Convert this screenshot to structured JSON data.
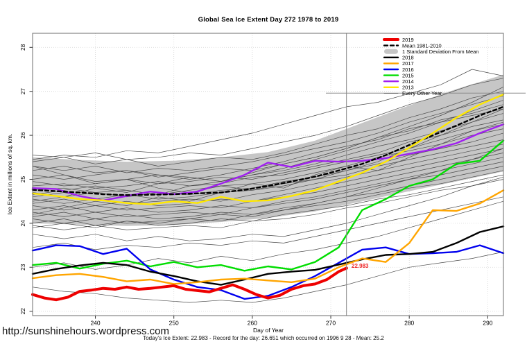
{
  "page": {
    "title": "Global Sea Ice Extent Day 272 1978 to 2019"
  },
  "axes": {
    "x_label": "Day of Year",
    "y_label": "Ice Extent in millions of sq. km."
  },
  "footer": {
    "url": "http://sunshinehours.wordpress.com",
    "caption": "Today's Ice Extent: 22.983  - Record for the day: 26.651 which occurred on 1996 9 28  - Mean: 25.2"
  },
  "annotation": {
    "text": "22.983"
  },
  "chart_data": {
    "type": "line",
    "title": "Global Sea Ice Extent Day 272 1978 to 2019",
    "xlabel": "Day of Year",
    "ylabel": "Ice Extent in millions of sq. km.",
    "xlim": [
      232,
      292
    ],
    "ylim": [
      21.9,
      28.32
    ],
    "x_ticks": [
      240,
      250,
      260,
      270,
      280,
      290
    ],
    "y_ticks": [
      22,
      23,
      24,
      25,
      26,
      27,
      28
    ],
    "grid": true,
    "grid_color": "#d4d4d4",
    "border_color": "#6e6e6e",
    "legend_position": "top-right",
    "reference_lines": {
      "vertical_day": 272,
      "horizontal_value": 26.96,
      "color": "#8a8a8a"
    },
    "annotation": {
      "text": "22.983",
      "day": 272.7,
      "value": 22.99,
      "color": "#ee2222"
    },
    "band": {
      "label": "1 Standard Deviation From Mean",
      "color": "#c6c6c6",
      "days": [
        232,
        238,
        244,
        250,
        256,
        262,
        268,
        274,
        280,
        286,
        292
      ],
      "top": [
        25.5,
        25.44,
        25.4,
        25.42,
        25.5,
        25.62,
        25.88,
        26.28,
        26.68,
        27.05,
        27.38
      ],
      "bottom": [
        24.0,
        23.97,
        23.94,
        23.96,
        24.03,
        24.12,
        24.27,
        24.5,
        24.73,
        24.95,
        25.18
      ]
    },
    "series_days": [
      232,
      235,
      238,
      241,
      244,
      247,
      250,
      253,
      256,
      259,
      262,
      265,
      268,
      271,
      274,
      277,
      280,
      283,
      286,
      289,
      292
    ],
    "series": [
      {
        "name": "2014",
        "color": "#a020f0",
        "width": 2.4,
        "values": [
          24.8,
          24.78,
          24.62,
          24.52,
          24.62,
          24.72,
          24.66,
          24.72,
          24.9,
          25.1,
          25.38,
          25.28,
          25.42,
          25.4,
          25.42,
          25.48,
          25.58,
          25.68,
          25.82,
          26.05,
          26.25
        ]
      },
      {
        "name": "Mean 1981-2010",
        "color": "#000000",
        "width": 2.4,
        "dash": "5 4",
        "values": [
          24.76,
          24.73,
          24.7,
          24.66,
          24.64,
          24.65,
          24.66,
          24.68,
          24.7,
          24.76,
          24.85,
          24.95,
          25.06,
          25.2,
          25.35,
          25.55,
          25.78,
          26.0,
          26.22,
          26.45,
          26.65
        ]
      },
      {
        "name": "2013",
        "color": "#ffe800",
        "width": 2.4,
        "values": [
          24.68,
          24.62,
          24.55,
          24.52,
          24.46,
          24.43,
          24.5,
          24.46,
          24.6,
          24.5,
          24.52,
          24.62,
          24.75,
          24.95,
          25.15,
          25.4,
          25.72,
          26.05,
          26.4,
          26.7,
          26.93
        ]
      },
      {
        "name": "2015",
        "color": "#00dd00",
        "width": 2.4,
        "values": [
          23.05,
          23.1,
          22.97,
          23.08,
          23.15,
          23.02,
          23.12,
          23.0,
          23.05,
          22.92,
          23.02,
          22.95,
          23.12,
          23.45,
          24.3,
          24.55,
          24.85,
          25.0,
          25.35,
          25.42,
          25.88
        ]
      },
      {
        "name": "2016",
        "color": "#0000ee",
        "width": 2.4,
        "values": [
          23.38,
          23.5,
          23.48,
          23.3,
          23.42,
          22.95,
          22.72,
          22.55,
          22.48,
          22.28,
          22.35,
          22.55,
          22.8,
          23.1,
          23.4,
          23.45,
          23.3,
          23.32,
          23.35,
          23.5,
          23.32
        ]
      },
      {
        "name": "2018",
        "color": "#000000",
        "width": 2.4,
        "values": [
          22.85,
          22.96,
          23.04,
          23.1,
          23.05,
          22.9,
          22.8,
          22.68,
          22.6,
          22.72,
          22.85,
          22.9,
          22.94,
          23.06,
          23.18,
          23.28,
          23.3,
          23.35,
          23.55,
          23.8,
          23.93
        ]
      },
      {
        "name": "2017",
        "color": "#ffa500",
        "width": 2.4,
        "values": [
          22.75,
          22.82,
          22.85,
          22.78,
          22.68,
          22.72,
          22.62,
          22.66,
          22.72,
          22.74,
          22.7,
          22.66,
          22.74,
          23.0,
          23.2,
          23.12,
          23.55,
          24.3,
          24.28,
          24.45,
          24.75
        ]
      }
    ],
    "series_2019": {
      "name": "2019",
      "color": "#ee0000",
      "width": 4,
      "end_dot": true,
      "days": [
        232,
        233.5,
        235,
        236.5,
        238,
        239.5,
        241,
        242.5,
        244,
        245.5,
        247,
        248.5,
        250,
        251.5,
        253,
        254.5,
        256,
        257.5,
        259,
        260.5,
        262,
        263.5,
        265,
        266.5,
        268,
        269.5,
        271,
        272
      ],
      "values": [
        22.38,
        22.3,
        22.26,
        22.32,
        22.45,
        22.48,
        22.52,
        22.5,
        22.55,
        22.5,
        22.52,
        22.55,
        22.58,
        22.5,
        22.47,
        22.44,
        22.52,
        22.6,
        22.5,
        22.38,
        22.3,
        22.36,
        22.5,
        22.58,
        22.62,
        22.72,
        22.9,
        22.98
      ]
    },
    "other_years": {
      "label": "Every Other Year",
      "color": "#4a4a4a",
      "width": 0.7,
      "days": [
        232,
        236,
        240,
        244,
        248,
        252,
        256,
        260,
        264,
        268,
        272,
        276,
        280,
        284,
        288,
        292
      ],
      "lines": [
        [
          25.55,
          25.5,
          25.6,
          25.45,
          25.5,
          25.6,
          25.55,
          25.7,
          25.85,
          26.0,
          26.2,
          26.45,
          26.7,
          26.9,
          27.15,
          27.3
        ],
        [
          25.4,
          25.5,
          25.35,
          25.45,
          25.3,
          25.4,
          25.5,
          25.45,
          25.6,
          25.8,
          26.0,
          26.15,
          26.4,
          26.6,
          26.85,
          27.0
        ],
        [
          25.3,
          25.2,
          25.3,
          25.15,
          25.25,
          25.2,
          25.3,
          25.4,
          25.55,
          25.7,
          25.85,
          26.05,
          26.3,
          26.5,
          26.7,
          26.9
        ],
        [
          25.2,
          25.3,
          25.15,
          25.2,
          25.05,
          25.15,
          25.25,
          25.2,
          25.35,
          25.5,
          25.7,
          25.95,
          26.1,
          26.35,
          26.5,
          26.7
        ],
        [
          25.1,
          25.0,
          25.1,
          25.2,
          25.1,
          25.0,
          25.1,
          25.25,
          25.4,
          25.6,
          25.75,
          25.9,
          26.15,
          26.3,
          26.45,
          26.6
        ],
        [
          25.0,
          25.1,
          24.95,
          25.0,
          25.1,
          25.05,
          24.95,
          25.1,
          25.2,
          25.35,
          25.55,
          25.75,
          25.9,
          26.1,
          26.3,
          26.5
        ],
        [
          24.95,
          24.85,
          24.9,
          25.0,
          24.9,
          24.95,
          25.05,
          25.0,
          25.15,
          25.3,
          25.45,
          25.6,
          25.85,
          26.0,
          26.2,
          26.35
        ],
        [
          24.85,
          24.9,
          24.8,
          24.85,
          24.95,
          24.85,
          24.9,
          25.05,
          25.1,
          25.25,
          25.4,
          25.55,
          25.7,
          25.9,
          26.1,
          26.25
        ],
        [
          24.75,
          24.8,
          24.7,
          24.75,
          24.65,
          24.75,
          24.85,
          24.9,
          25.0,
          25.15,
          25.3,
          25.5,
          25.65,
          25.8,
          26.0,
          26.15
        ],
        [
          24.7,
          24.6,
          24.7,
          24.6,
          24.7,
          24.65,
          24.75,
          24.8,
          24.95,
          25.05,
          25.2,
          25.35,
          25.55,
          25.7,
          25.85,
          26.05
        ],
        [
          24.6,
          24.7,
          24.55,
          24.65,
          24.55,
          24.6,
          24.7,
          24.75,
          24.85,
          25.0,
          25.1,
          25.3,
          25.45,
          25.6,
          25.75,
          25.9
        ],
        [
          24.55,
          24.45,
          24.55,
          24.45,
          24.5,
          24.55,
          24.5,
          24.65,
          24.75,
          24.9,
          25.05,
          25.2,
          25.35,
          25.5,
          25.65,
          25.8
        ],
        [
          24.45,
          24.55,
          24.4,
          24.5,
          24.4,
          24.45,
          24.55,
          24.5,
          24.65,
          24.8,
          24.95,
          25.1,
          25.25,
          25.4,
          25.55,
          25.7
        ],
        [
          24.4,
          24.3,
          24.4,
          24.3,
          24.35,
          24.4,
          24.35,
          24.5,
          24.6,
          24.7,
          24.85,
          25.0,
          25.15,
          25.3,
          25.45,
          25.6
        ],
        [
          24.3,
          24.4,
          24.25,
          24.35,
          24.25,
          24.3,
          24.4,
          24.35,
          24.5,
          24.6,
          24.75,
          24.9,
          25.05,
          25.2,
          25.35,
          25.5
        ],
        [
          24.25,
          24.15,
          24.25,
          24.15,
          24.2,
          24.25,
          24.2,
          24.35,
          24.45,
          24.55,
          24.7,
          24.85,
          25.0,
          25.1,
          25.25,
          25.4
        ],
        [
          24.15,
          24.25,
          24.1,
          24.2,
          24.1,
          24.15,
          24.25,
          24.2,
          24.35,
          24.45,
          24.6,
          24.7,
          24.85,
          25.0,
          25.15,
          25.3
        ],
        [
          24.1,
          24.0,
          24.1,
          24.0,
          24.05,
          24.1,
          24.05,
          24.2,
          24.3,
          24.4,
          24.5,
          24.65,
          24.8,
          24.9,
          25.05,
          25.2
        ],
        [
          24.0,
          24.1,
          23.95,
          24.05,
          23.95,
          24.0,
          24.1,
          24.05,
          24.2,
          24.3,
          24.4,
          24.55,
          24.65,
          24.8,
          24.95,
          25.1
        ],
        [
          23.95,
          23.85,
          23.95,
          23.85,
          23.9,
          23.95,
          23.9,
          24.05,
          24.1,
          24.2,
          24.35,
          24.45,
          24.6,
          24.75,
          24.85,
          25.0
        ],
        [
          24.2,
          24.35,
          24.5,
          24.4,
          24.6,
          24.5,
          24.7,
          24.9,
          24.8,
          25.1,
          25.3,
          25.2,
          25.5,
          25.8,
          26.1,
          26.3
        ],
        [
          25.3,
          25.1,
          24.9,
          25.0,
          24.8,
          24.7,
          24.85,
          24.75,
          24.9,
          25.0,
          25.2,
          25.4,
          25.7,
          26.0,
          26.3,
          26.6
        ],
        [
          24.5,
          24.6,
          24.8,
          24.7,
          24.9,
          25.05,
          24.95,
          25.15,
          25.35,
          25.5,
          25.7,
          25.95,
          26.2,
          26.45,
          26.75,
          27.1
        ],
        [
          25.45,
          25.55,
          25.5,
          25.65,
          25.6,
          25.75,
          25.9,
          26.05,
          26.25,
          26.45,
          26.65,
          26.75,
          26.95,
          27.15,
          27.5,
          27.35
        ],
        [
          23.9,
          24.0,
          23.9,
          24.05,
          24.0,
          24.1,
          24.2,
          24.15,
          24.3,
          24.45,
          24.6,
          24.8,
          25.0,
          25.2,
          25.45,
          25.7
        ],
        [
          24.65,
          24.75,
          24.85,
          24.75,
          24.65,
          24.85,
          24.95,
          25.1,
          25.25,
          25.45,
          25.65,
          25.85,
          26.05,
          26.3,
          26.55,
          26.8
        ],
        [
          23.45,
          23.55,
          23.4,
          23.5,
          23.45,
          23.55,
          23.5,
          23.6,
          23.55,
          23.7,
          23.85,
          24.0,
          24.15,
          24.3,
          24.45,
          24.6
        ],
        [
          23.0,
          23.1,
          22.95,
          23.05,
          23.2,
          23.1,
          23.25,
          23.15,
          23.3,
          23.4,
          23.55,
          23.7,
          23.9,
          24.1,
          24.3,
          24.5
        ],
        [
          22.55,
          22.45,
          22.4,
          22.3,
          22.25,
          22.2,
          22.25,
          22.2,
          22.3,
          22.45,
          22.6,
          22.8,
          23.0,
          23.1,
          23.2,
          23.35
        ],
        [
          23.75,
          23.65,
          23.75,
          23.6,
          23.7,
          23.6,
          23.65,
          23.75,
          23.7,
          23.85,
          24.0,
          24.2,
          24.4,
          24.6,
          24.85,
          25.05
        ]
      ]
    },
    "legend": {
      "items": [
        {
          "label": "2019",
          "swatch": "line",
          "color": "#ee0000",
          "width": 4
        },
        {
          "label": "Mean 1981-2010",
          "swatch": "dash",
          "color": "#000000",
          "width": 2.4
        },
        {
          "label": "1 Standard Deviation From Mean",
          "swatch": "band",
          "color": "#c6c6c6",
          "width": 7
        },
        {
          "label": "2018",
          "swatch": "line",
          "color": "#000000",
          "width": 2.4
        },
        {
          "label": "2017",
          "swatch": "line",
          "color": "#ffa500",
          "width": 2.4
        },
        {
          "label": "2016",
          "swatch": "line",
          "color": "#0000ee",
          "width": 2.4
        },
        {
          "label": "2015",
          "swatch": "line",
          "color": "#00dd00",
          "width": 2.4
        },
        {
          "label": "2014",
          "swatch": "line",
          "color": "#a020f0",
          "width": 2.4
        },
        {
          "label": "2013",
          "swatch": "line",
          "color": "#ffe800",
          "width": 2.4
        },
        {
          "label": "Every Other Year",
          "swatch": "thin",
          "color": "#4a4a4a",
          "width": 0.8
        }
      ]
    }
  }
}
